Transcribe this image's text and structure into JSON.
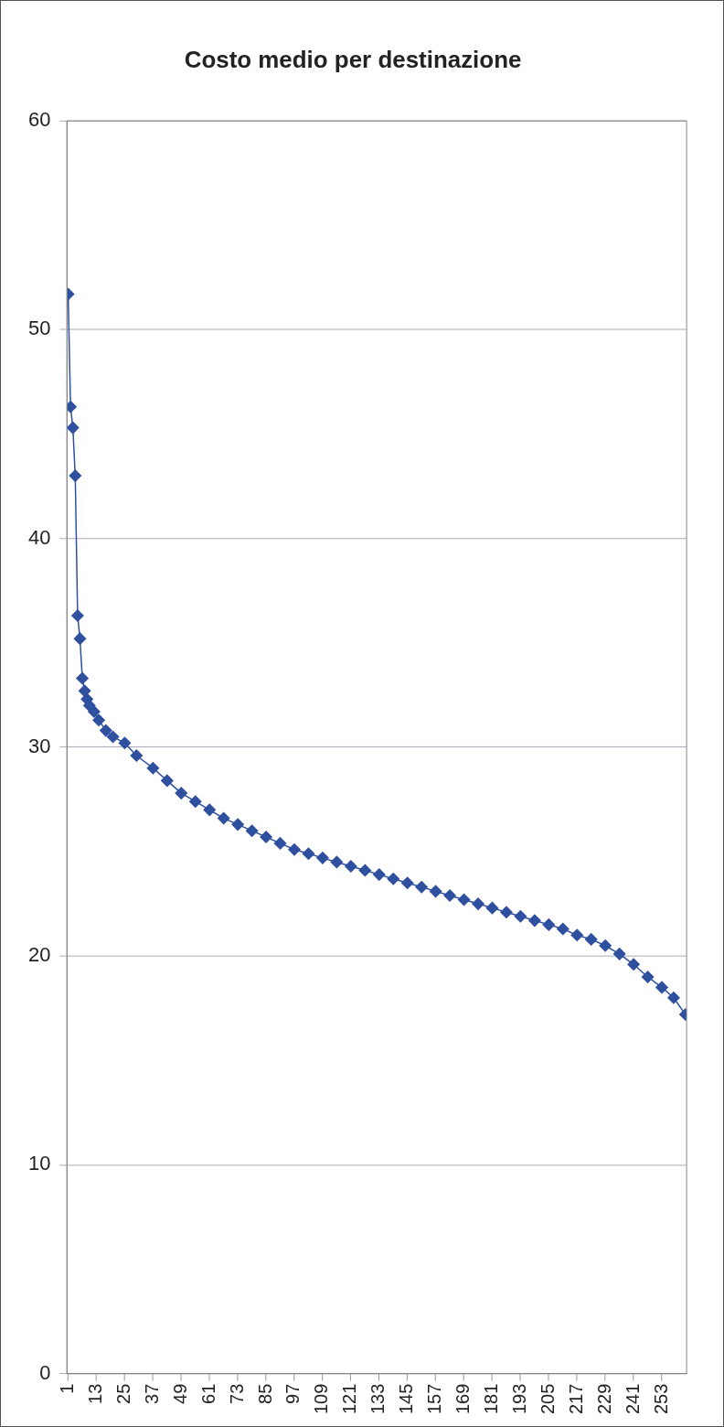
{
  "chart_data": {
    "type": "line",
    "title": "Costo medio per destinazione",
    "x": [
      1,
      2,
      3,
      4,
      5,
      6,
      7,
      8,
      9,
      10,
      12,
      14,
      17,
      20,
      25,
      30,
      37,
      43,
      49,
      55,
      61,
      67,
      73,
      79,
      85,
      91,
      97,
      103,
      109,
      115,
      121,
      127,
      133,
      139,
      145,
      151,
      157,
      163,
      169,
      175,
      181,
      187,
      193,
      199,
      205,
      211,
      217,
      223,
      229,
      235,
      241,
      247,
      253,
      258,
      263
    ],
    "series": [
      {
        "color": "#2f4f9f",
        "values": [
          51.7,
          46.3,
          45.3,
          43,
          36.3,
          35.2,
          33.3,
          32.7,
          32.3,
          32.0,
          31.7,
          31.3,
          30.8,
          30.5,
          30.2,
          29.6,
          29.0,
          28.4,
          27.8,
          27.4,
          27.0,
          26.6,
          26.3,
          26.0,
          25.7,
          25.4,
          25.1,
          24.9,
          24.7,
          24.5,
          24.3,
          24.1,
          23.9,
          23.7,
          23.5,
          23.3,
          23.1,
          22.9,
          22.7,
          22.5,
          22.3,
          22.1,
          21.9,
          21.7,
          21.5,
          21.3,
          21.0,
          20.8,
          20.5,
          20.1,
          19.6,
          19.0,
          18.5,
          18.0,
          17.2
        ]
      }
    ],
    "xlim": [
      0.5,
      263.5
    ],
    "xticks": [
      1,
      13,
      25,
      37,
      49,
      61,
      73,
      85,
      97,
      109,
      121,
      133,
      145,
      157,
      169,
      181,
      193,
      205,
      217,
      229,
      241,
      253
    ],
    "ylim": [
      0,
      60
    ],
    "yticks": [
      0,
      10,
      20,
      30,
      40,
      50,
      60
    ],
    "grid": "y",
    "legend": false,
    "marker": "diamond",
    "line_style": "solid"
  }
}
